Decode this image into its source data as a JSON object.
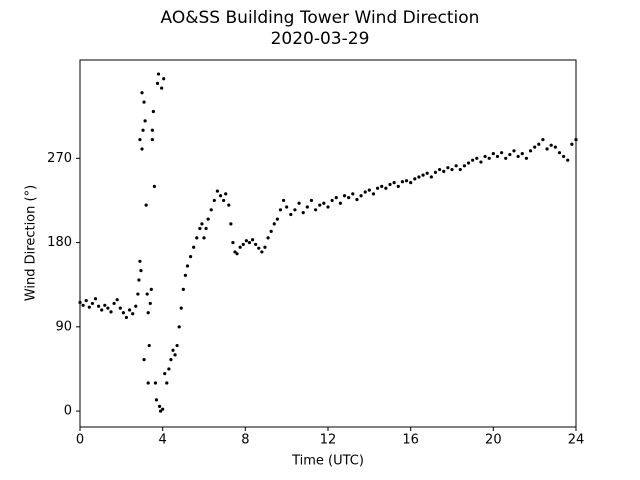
{
  "chart_data": {
    "type": "scatter",
    "title": "AO&SS Building Tower Wind Direction",
    "subtitle": "2020-03-29",
    "x_label": "Time (UTC)",
    "y_label": "Wind Direction (°)",
    "color": "#000000",
    "xlim": [
      0,
      24
    ],
    "xticks": [
      0,
      4,
      8,
      12,
      16,
      20,
      24
    ],
    "ylim": [
      -17,
      375
    ],
    "yticks": [
      0,
      90,
      180,
      270
    ],
    "x": [
      0.0,
      0.15,
      0.3,
      0.45,
      0.6,
      0.75,
      0.9,
      1.05,
      1.2,
      1.35,
      1.5,
      1.65,
      1.8,
      1.95,
      2.1,
      2.25,
      2.4,
      2.55,
      2.7,
      2.8,
      2.85,
      2.9,
      2.95,
      2.9,
      3.0,
      3.05,
      3.1,
      3.0,
      3.15,
      3.2,
      3.25,
      3.3,
      3.1,
      3.3,
      3.35,
      3.4,
      3.45,
      3.5,
      3.55,
      3.6,
      3.5,
      3.65,
      3.7,
      3.75,
      3.8,
      3.85,
      3.9,
      3.95,
      4.0,
      4.05,
      4.1,
      4.2,
      4.3,
      4.4,
      4.5,
      4.6,
      4.7,
      4.8,
      4.9,
      5.0,
      5.1,
      5.2,
      5.35,
      5.5,
      5.65,
      5.8,
      5.9,
      6.0,
      6.1,
      6.2,
      6.35,
      6.5,
      6.65,
      6.8,
      6.95,
      7.05,
      7.2,
      7.3,
      7.4,
      7.5,
      7.6,
      7.75,
      7.9,
      8.05,
      8.2,
      8.35,
      8.5,
      8.65,
      8.8,
      8.95,
      9.1,
      9.25,
      9.4,
      9.55,
      9.7,
      9.85,
      10.0,
      10.2,
      10.4,
      10.6,
      10.8,
      11.0,
      11.2,
      11.4,
      11.6,
      11.8,
      12.0,
      12.2,
      12.4,
      12.6,
      12.8,
      13.0,
      13.2,
      13.4,
      13.6,
      13.8,
      14.0,
      14.2,
      14.4,
      14.6,
      14.8,
      15.0,
      15.2,
      15.4,
      15.6,
      15.8,
      16.0,
      16.2,
      16.4,
      16.6,
      16.8,
      17.0,
      17.2,
      17.4,
      17.6,
      17.8,
      18.0,
      18.2,
      18.4,
      18.6,
      18.8,
      19.0,
      19.2,
      19.4,
      19.6,
      19.8,
      20.0,
      20.2,
      20.4,
      20.6,
      20.8,
      21.0,
      21.2,
      21.4,
      21.6,
      21.8,
      22.0,
      22.2,
      22.4,
      22.6,
      22.8,
      23.0,
      23.2,
      23.4,
      23.6,
      23.8,
      24.0
    ],
    "values": [
      116,
      113,
      118,
      111,
      115,
      120,
      112,
      108,
      113,
      110,
      106,
      115,
      119,
      110,
      105,
      100,
      108,
      104,
      112,
      125,
      140,
      160,
      150,
      290,
      280,
      300,
      330,
      340,
      310,
      220,
      125,
      105,
      55,
      30,
      70,
      115,
      130,
      290,
      320,
      240,
      300,
      30,
      12,
      350,
      360,
      5,
      0,
      345,
      2,
      355,
      40,
      30,
      45,
      55,
      65,
      60,
      70,
      90,
      110,
      130,
      145,
      155,
      165,
      175,
      185,
      195,
      200,
      185,
      195,
      205,
      215,
      225,
      235,
      230,
      225,
      232,
      220,
      200,
      180,
      170,
      168,
      175,
      178,
      182,
      180,
      183,
      178,
      174,
      170,
      175,
      185,
      192,
      200,
      205,
      215,
      225,
      218,
      210,
      215,
      222,
      212,
      218,
      225,
      215,
      220,
      222,
      218,
      225,
      228,
      222,
      230,
      228,
      232,
      226,
      230,
      234,
      236,
      232,
      238,
      240,
      238,
      242,
      244,
      240,
      245,
      246,
      244,
      248,
      250,
      252,
      254,
      250,
      255,
      258,
      256,
      260,
      258,
      262,
      258,
      262,
      265,
      268,
      270,
      266,
      272,
      270,
      275,
      272,
      276,
      270,
      274,
      278,
      272,
      275,
      270,
      278,
      282,
      285,
      290,
      280,
      284,
      282,
      276,
      272,
      268,
      285,
      290
    ]
  }
}
